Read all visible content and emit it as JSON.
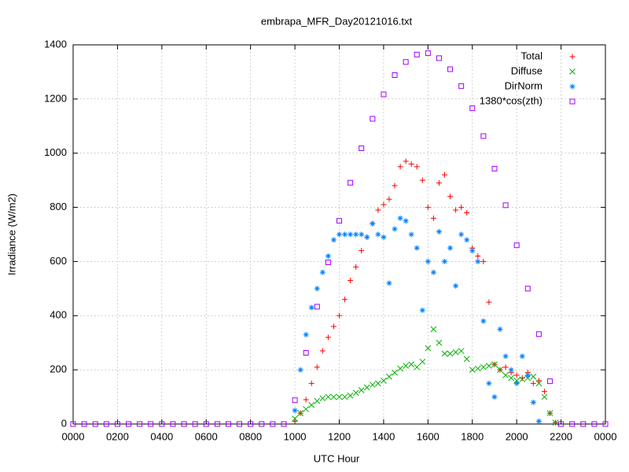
{
  "chart_data": {
    "type": "scatter",
    "title": "embrapa_MFR_Day20121016.txt",
    "x_label": "UTC Hour",
    "y_label": "Irradiance (W/m2)",
    "xlim": [
      0,
      24
    ],
    "ylim": [
      0,
      1400
    ],
    "xticks": [
      {
        "value": 0,
        "label": "0000"
      },
      {
        "value": 2,
        "label": "0200"
      },
      {
        "value": 4,
        "label": "0400"
      },
      {
        "value": 6,
        "label": "0600"
      },
      {
        "value": 8,
        "label": "0800"
      },
      {
        "value": 10,
        "label": "1000"
      },
      {
        "value": 12,
        "label": "1200"
      },
      {
        "value": 14,
        "label": "1400"
      },
      {
        "value": 16,
        "label": "1600"
      },
      {
        "value": 18,
        "label": "1800"
      },
      {
        "value": 20,
        "label": "2000"
      },
      {
        "value": 22,
        "label": "2200"
      },
      {
        "value": 24,
        "label": "0000"
      }
    ],
    "yticks": [
      0,
      200,
      400,
      600,
      800,
      1000,
      1200,
      1400
    ],
    "grid": true,
    "legend": "top-right",
    "series": [
      {
        "name": "Total",
        "color": "#ff0000",
        "marker": "plus",
        "x": [
          10,
          10.25,
          10.5,
          10.75,
          11,
          11.25,
          11.5,
          11.75,
          12,
          12.25,
          12.5,
          12.75,
          13,
          13.25,
          13.5,
          13.75,
          14,
          14.25,
          14.5,
          14.75,
          15,
          15.25,
          15.5,
          15.75,
          16,
          16.25,
          16.5,
          16.75,
          17,
          17.25,
          17.5,
          17.75,
          18,
          18.25,
          18.5,
          18.75,
          19,
          19.25,
          19.5,
          19.75,
          20,
          20.25,
          20.5,
          20.75,
          21,
          21.25,
          21.5,
          21.75
        ],
        "values": [
          10,
          40,
          90,
          150,
          210,
          270,
          320,
          360,
          400,
          460,
          530,
          580,
          640,
          690,
          740,
          790,
          810,
          830,
          880,
          950,
          970,
          960,
          950,
          900,
          800,
          760,
          890,
          920,
          840,
          790,
          800,
          780,
          650,
          620,
          600,
          450,
          220,
          200,
          210,
          190,
          180,
          170,
          190,
          150,
          160,
          120,
          40,
          5
        ]
      },
      {
        "name": "Diffuse",
        "color": "#00b000",
        "marker": "cross",
        "x": [
          10,
          10.25,
          10.5,
          10.75,
          11,
          11.25,
          11.5,
          11.75,
          12,
          12.25,
          12.5,
          12.75,
          13,
          13.25,
          13.5,
          13.75,
          14,
          14.25,
          14.5,
          14.75,
          15,
          15.25,
          15.5,
          15.75,
          16,
          16.25,
          16.5,
          16.75,
          17,
          17.25,
          17.5,
          17.75,
          18,
          18.25,
          18.5,
          18.75,
          19,
          19.25,
          19.5,
          19.75,
          20,
          20.25,
          20.5,
          20.75,
          21,
          21.25,
          21.5,
          21.75
        ],
        "values": [
          20,
          40,
          55,
          70,
          85,
          95,
          100,
          100,
          100,
          100,
          105,
          115,
          125,
          135,
          145,
          150,
          160,
          175,
          190,
          205,
          215,
          220,
          210,
          230,
          280,
          350,
          300,
          260,
          260,
          265,
          270,
          240,
          200,
          205,
          210,
          215,
          220,
          200,
          180,
          170,
          160,
          165,
          170,
          175,
          150,
          100,
          40,
          5
        ]
      },
      {
        "name": "DirNorm",
        "color": "#0080ff",
        "marker": "star",
        "x": [
          10,
          10.25,
          10.5,
          10.75,
          11,
          11.25,
          11.5,
          11.75,
          12,
          12.25,
          12.5,
          12.75,
          13,
          13.25,
          13.5,
          13.75,
          14,
          14.25,
          14.5,
          14.75,
          15,
          15.25,
          15.5,
          15.75,
          16,
          16.25,
          16.5,
          16.75,
          17,
          17.25,
          17.5,
          17.75,
          18,
          18.25,
          18.5,
          18.75,
          19,
          19.25,
          19.5,
          19.75,
          20,
          20.25,
          20.5,
          20.75,
          21
        ],
        "values": [
          50,
          200,
          330,
          430,
          500,
          560,
          620,
          680,
          700,
          700,
          700,
          700,
          700,
          690,
          740,
          700,
          690,
          520,
          720,
          760,
          750,
          700,
          650,
          420,
          600,
          560,
          710,
          600,
          650,
          510,
          700,
          680,
          640,
          600,
          380,
          150,
          100,
          350,
          250,
          200,
          150,
          250,
          180,
          80,
          10
        ]
      },
      {
        "name": "1380*cos(zth)",
        "color": "#a000ff",
        "marker": "square",
        "x": [
          0,
          0.5,
          1,
          1.5,
          2,
          2.5,
          3,
          3.5,
          4,
          4.5,
          5,
          5.5,
          6,
          6.5,
          7,
          7.5,
          8,
          8.5,
          9,
          9.5,
          10,
          10.5,
          11,
          11.5,
          12,
          12.5,
          13,
          13.5,
          14,
          14.5,
          15,
          15.5,
          16,
          16.5,
          17,
          17.5,
          18,
          18.5,
          19,
          19.5,
          20,
          20.5,
          21,
          21.5,
          22,
          22.5,
          23,
          23.5,
          24
        ],
        "values": [
          0,
          0,
          0,
          0,
          0,
          0,
          0,
          0,
          0,
          0,
          0,
          0,
          0,
          0,
          0,
          0,
          0,
          0,
          0,
          0,
          88,
          263,
          433,
          597,
          750,
          891,
          1018,
          1127,
          1217,
          1288,
          1337,
          1364,
          1369,
          1351,
          1310,
          1248,
          1166,
          1063,
          943,
          808,
          660,
          500,
          332,
          158,
          0,
          0,
          0,
          0,
          0
        ]
      }
    ]
  }
}
